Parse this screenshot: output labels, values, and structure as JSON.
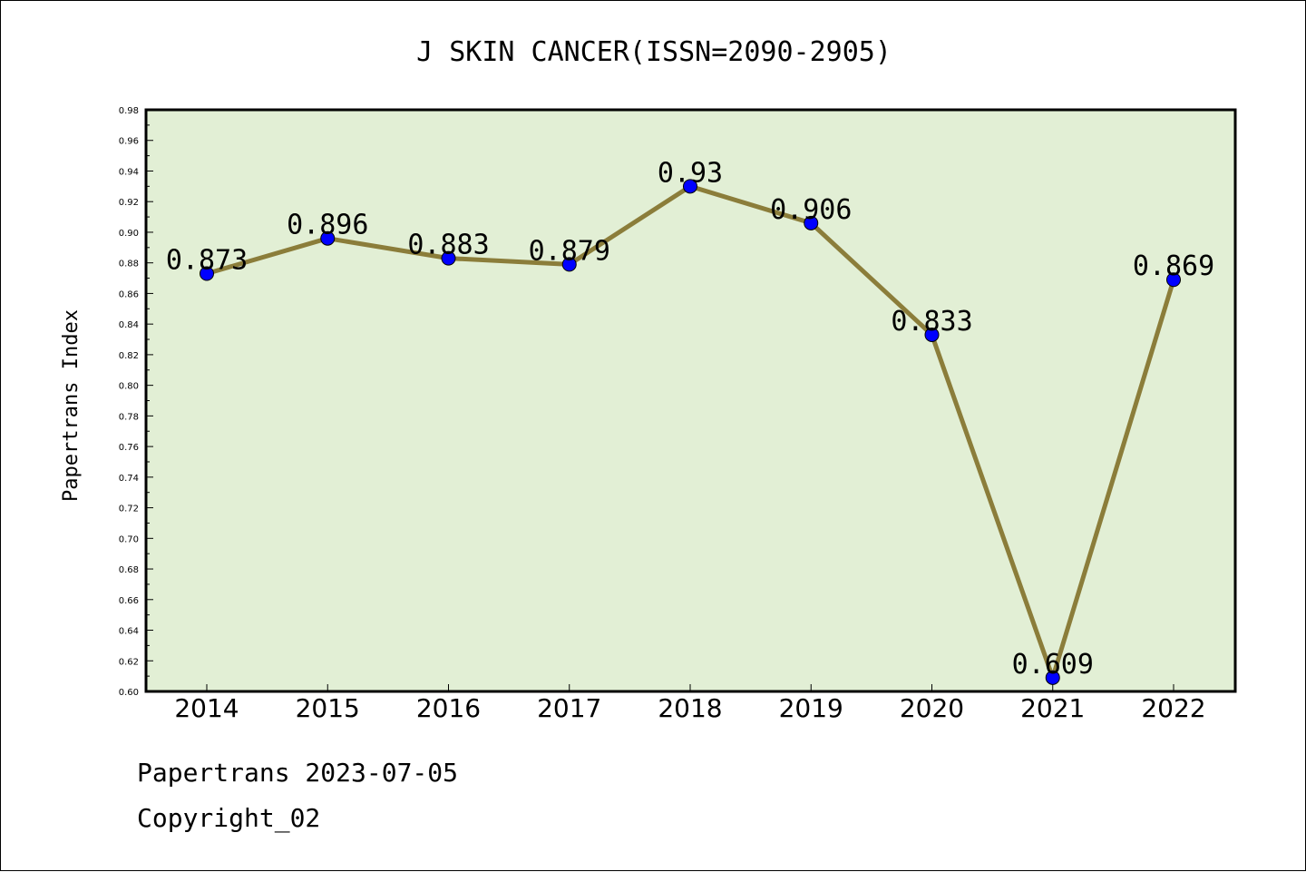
{
  "chart_data": {
    "type": "line",
    "title": "J SKIN CANCER(ISSN=2090-2905)",
    "xlabel": "",
    "ylabel": "Papertrans Index",
    "categories": [
      "2014",
      "2015",
      "2016",
      "2017",
      "2018",
      "2019",
      "2020",
      "2021",
      "2022"
    ],
    "series": [
      {
        "values": [
          0.873,
          0.896,
          0.883,
          0.879,
          0.93,
          0.906,
          0.833,
          0.609,
          0.869
        ],
        "labels": [
          "0.873",
          "0.896",
          "0.883",
          "0.879",
          "0.93",
          "0.906",
          "0.833",
          "0.609",
          "0.869"
        ]
      }
    ],
    "ylim": [
      0.6,
      0.98
    ],
    "yticks": [
      "0.60",
      "0.62",
      "0.64",
      "0.66",
      "0.68",
      "0.70",
      "0.72",
      "0.74",
      "0.76",
      "0.78",
      "0.80",
      "0.82",
      "0.84",
      "0.86",
      "0.88",
      "0.90",
      "0.92",
      "0.94",
      "0.96",
      "0.98"
    ],
    "grid": false,
    "legend": "none",
    "colors": {
      "plot_background": "#e2efd5",
      "line": "#8b7d3a",
      "marker": "#0000ff"
    }
  },
  "footer": {
    "line1": "Papertrans 2023-07-05",
    "line2": "Copyright_02"
  }
}
